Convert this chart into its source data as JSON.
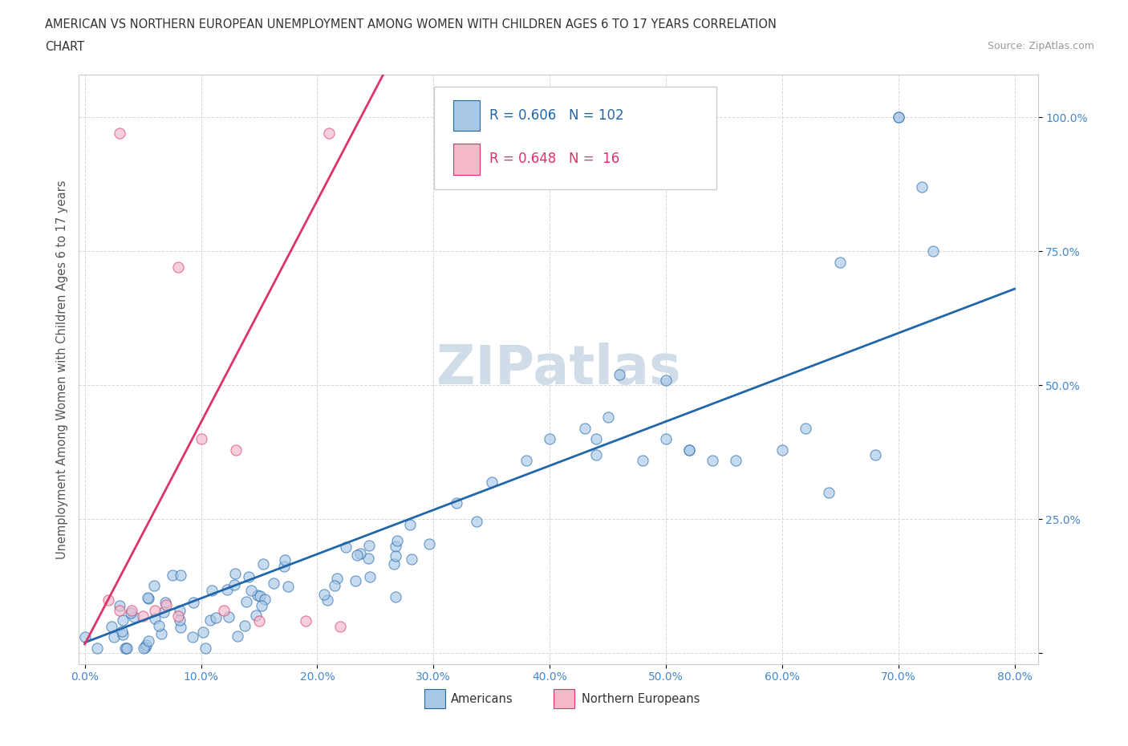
{
  "title_line1": "AMERICAN VS NORTHERN EUROPEAN UNEMPLOYMENT AMONG WOMEN WITH CHILDREN AGES 6 TO 17 YEARS CORRELATION",
  "title_line2": "CHART",
  "source_text": "Source: ZipAtlas.com",
  "ylabel": "Unemployment Among Women with Children Ages 6 to 17 years",
  "xtick_labels": [
    "0.0%",
    "10.0%",
    "20.0%",
    "30.0%",
    "40.0%",
    "50.0%",
    "60.0%",
    "70.0%",
    "80.0%"
  ],
  "ytick_labels": [
    "",
    "25.0%",
    "50.0%",
    "75.0%",
    "100.0%"
  ],
  "ytick_values": [
    0.0,
    0.25,
    0.5,
    0.75,
    1.0
  ],
  "xtick_values": [
    0.0,
    0.1,
    0.2,
    0.3,
    0.4,
    0.5,
    0.6,
    0.7,
    0.8
  ],
  "american_color": "#a8c8e8",
  "european_color": "#f4b8c8",
  "american_line_color": "#2266aa",
  "european_line_color": "#dd3366",
  "watermark_color": "#d0dce8",
  "legend_R_american": "0.606",
  "legend_N_american": "102",
  "legend_R_european": "0.648",
  "legend_N_european": " 16",
  "background_color": "#ffffff",
  "grid_color": "#d8d8d8",
  "tick_color": "#4488cc",
  "title_color": "#333333",
  "ylabel_color": "#555555"
}
